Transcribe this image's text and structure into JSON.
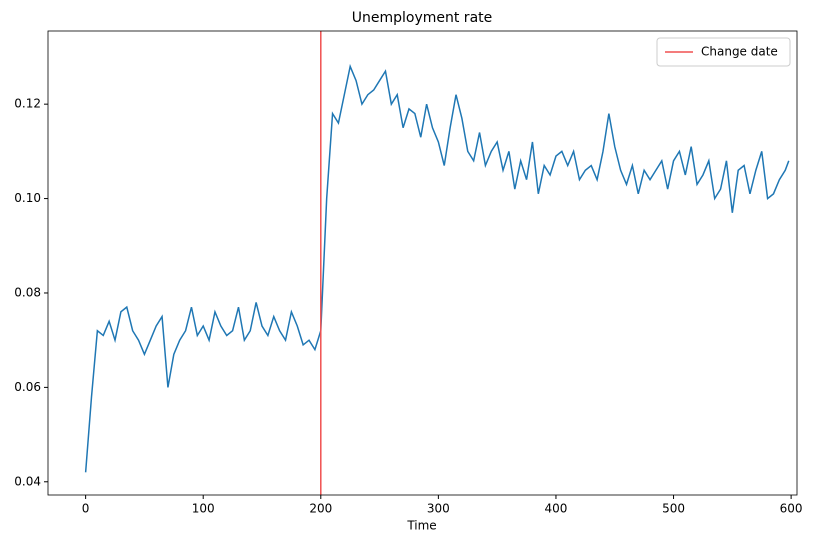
{
  "chart_data": {
    "type": "line",
    "title": "Unemployment rate",
    "x_label": "Time",
    "x": [
      0,
      5,
      10,
      15,
      20,
      25,
      30,
      35,
      40,
      45,
      50,
      55,
      60,
      65,
      70,
      75,
      80,
      85,
      90,
      95,
      100,
      105,
      110,
      115,
      120,
      125,
      130,
      135,
      140,
      145,
      150,
      155,
      160,
      165,
      170,
      175,
      180,
      185,
      190,
      195,
      200,
      205,
      210,
      215,
      220,
      225,
      230,
      235,
      240,
      245,
      250,
      255,
      260,
      265,
      270,
      275,
      280,
      285,
      290,
      295,
      300,
      305,
      310,
      315,
      320,
      325,
      330,
      335,
      340,
      345,
      350,
      355,
      360,
      365,
      370,
      375,
      380,
      385,
      390,
      395,
      400,
      405,
      410,
      415,
      420,
      425,
      430,
      435,
      440,
      445,
      450,
      455,
      460,
      465,
      470,
      475,
      480,
      485,
      490,
      495,
      500,
      505,
      510,
      515,
      520,
      525,
      530,
      535,
      540,
      545,
      550,
      555,
      560,
      565,
      570,
      575,
      580,
      585,
      590,
      595,
      598
    ],
    "series": [
      {
        "color": "#1f77b4",
        "values": [
          0.042,
          0.058,
          0.072,
          0.071,
          0.074,
          0.07,
          0.076,
          0.077,
          0.072,
          0.07,
          0.067,
          0.07,
          0.073,
          0.075,
          0.06,
          0.067,
          0.07,
          0.072,
          0.077,
          0.071,
          0.073,
          0.07,
          0.076,
          0.073,
          0.071,
          0.072,
          0.077,
          0.07,
          0.072,
          0.078,
          0.073,
          0.071,
          0.075,
          0.072,
          0.07,
          0.076,
          0.073,
          0.069,
          0.07,
          0.068,
          0.072,
          0.1,
          0.118,
          0.116,
          0.122,
          0.128,
          0.125,
          0.12,
          0.122,
          0.123,
          0.125,
          0.127,
          0.12,
          0.122,
          0.115,
          0.119,
          0.118,
          0.113,
          0.12,
          0.115,
          0.112,
          0.107,
          0.115,
          0.122,
          0.117,
          0.11,
          0.108,
          0.114,
          0.107,
          0.11,
          0.112,
          0.106,
          0.11,
          0.102,
          0.108,
          0.104,
          0.112,
          0.101,
          0.107,
          0.105,
          0.109,
          0.11,
          0.107,
          0.11,
          0.104,
          0.106,
          0.107,
          0.104,
          0.11,
          0.118,
          0.111,
          0.106,
          0.103,
          0.107,
          0.101,
          0.106,
          0.104,
          0.106,
          0.108,
          0.102,
          0.108,
          0.11,
          0.105,
          0.111,
          0.103,
          0.105,
          0.108,
          0.1,
          0.102,
          0.108,
          0.097,
          0.106,
          0.107,
          0.101,
          0.106,
          0.11,
          0.1,
          0.101,
          0.104,
          0.106,
          0.108
        ]
      }
    ],
    "vline": {
      "x": 200,
      "label": "Change date",
      "color": "#f05050"
    },
    "legend": "upper right",
    "xlim": [
      -32,
      605
    ],
    "xticks": [
      0,
      100,
      200,
      300,
      400,
      500,
      600
    ],
    "ylim": [
      0.0372,
      0.1355
    ],
    "yticks": [
      {
        "value": 0.04,
        "label": "0.04"
      },
      {
        "value": 0.06,
        "label": "0.06"
      },
      {
        "value": 0.08,
        "label": "0.08"
      },
      {
        "value": 0.1,
        "label": "0.10"
      },
      {
        "value": 0.12,
        "label": "0.12"
      }
    ],
    "grid": false
  }
}
